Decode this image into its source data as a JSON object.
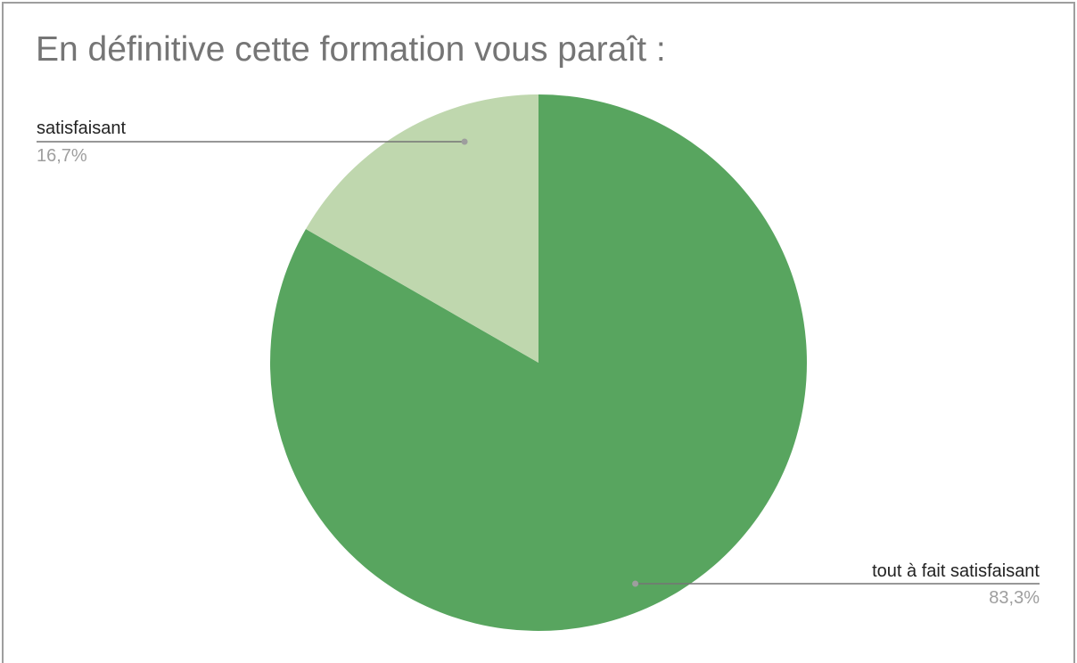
{
  "chart_data": {
    "type": "pie",
    "title": "En définitive cette formation vous paraît :",
    "slices": [
      {
        "label": "tout à fait satisfaisant",
        "value": 83.3,
        "percent_label": "83,3%",
        "color": "#58a55f"
      },
      {
        "label": "satisfaisant",
        "value": 16.7,
        "percent_label": "16,7%",
        "color": "#bfd7ae"
      }
    ],
    "start_angle": "12 o'clock",
    "direction": "clockwise",
    "label_color": "#222222",
    "percent_color": "#9e9e9e",
    "leader_color": "#757575"
  }
}
